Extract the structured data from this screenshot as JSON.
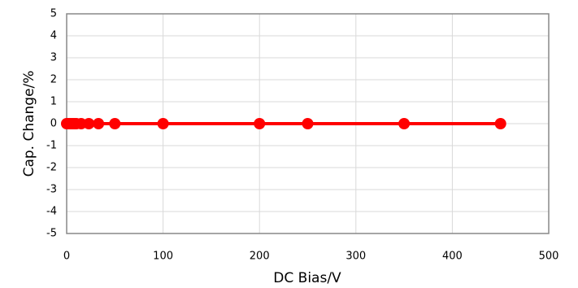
{
  "chart_data": {
    "type": "line",
    "x_label": "DC Bias/V",
    "y_label": "Cap. Change/%",
    "x": [
      0,
      2,
      4,
      6,
      8,
      10,
      15,
      23,
      33,
      50,
      100,
      200,
      250,
      350,
      450
    ],
    "series": [
      {
        "name": "Cap. Change",
        "color": "#ff0000",
        "values": [
          0,
          0,
          0,
          0,
          0,
          0,
          0,
          0,
          0,
          0,
          0,
          0,
          0,
          0,
          0
        ]
      }
    ],
    "xlim": [
      0,
      500
    ],
    "xticks": [
      0,
      100,
      200,
      300,
      400,
      500
    ],
    "ylim": [
      -5,
      5
    ],
    "yticks": [
      -5,
      -4,
      -3,
      -2,
      -1,
      0,
      1,
      2,
      3,
      4,
      5
    ],
    "grid": true
  }
}
